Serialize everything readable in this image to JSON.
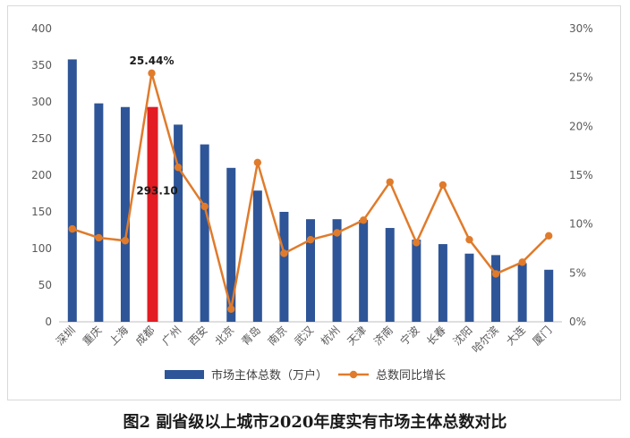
{
  "chart_data": {
    "type": "bar",
    "title": "",
    "xlabel": "",
    "ylabel": "",
    "categories": [
      "深圳",
      "重庆",
      "上海",
      "成都",
      "广州",
      "西安",
      "北京",
      "青岛",
      "南京",
      "武汉",
      "杭州",
      "天津",
      "济南",
      "宁波",
      "长春",
      "沈阳",
      "哈尔滨",
      "大连",
      "厦门"
    ],
    "series": [
      {
        "name": "市场主体总数（万户）",
        "type": "bar",
        "axis": "left",
        "color": "#2e5597",
        "highlight": {
          "category": "成都",
          "color": "#e31b23"
        },
        "values": [
          358,
          298,
          293,
          293.1,
          269,
          242,
          210,
          179,
          150,
          140,
          140,
          139,
          128,
          112,
          106,
          93,
          91,
          80,
          71
        ]
      },
      {
        "name": "总数同比增长",
        "type": "line",
        "axis": "right",
        "color": "#e07b2b",
        "values": [
          9.5,
          8.6,
          8.3,
          25.44,
          15.8,
          11.8,
          1.3,
          16.3,
          7.0,
          8.4,
          9.1,
          10.4,
          14.3,
          8.1,
          14.0,
          8.4,
          4.9,
          6.1,
          8.8
        ]
      }
    ],
    "y_left": {
      "min": 0,
      "max": 400,
      "ticks": [
        0,
        50,
        100,
        150,
        200,
        250,
        300,
        350,
        400
      ]
    },
    "y_right": {
      "min": 0,
      "max": 30,
      "ticks": [
        "0%",
        "5%",
        "10%",
        "15%",
        "20%",
        "25%",
        "30%"
      ]
    },
    "annotations": [
      {
        "category": "成都",
        "series": "line",
        "text": "25.44%"
      },
      {
        "category": "成都",
        "series": "bar",
        "text": "293.10"
      }
    ],
    "legend_position": "bottom",
    "grid": false,
    "caption": "图2  副省级以上城市2020年度实有市场主体总数对比"
  }
}
